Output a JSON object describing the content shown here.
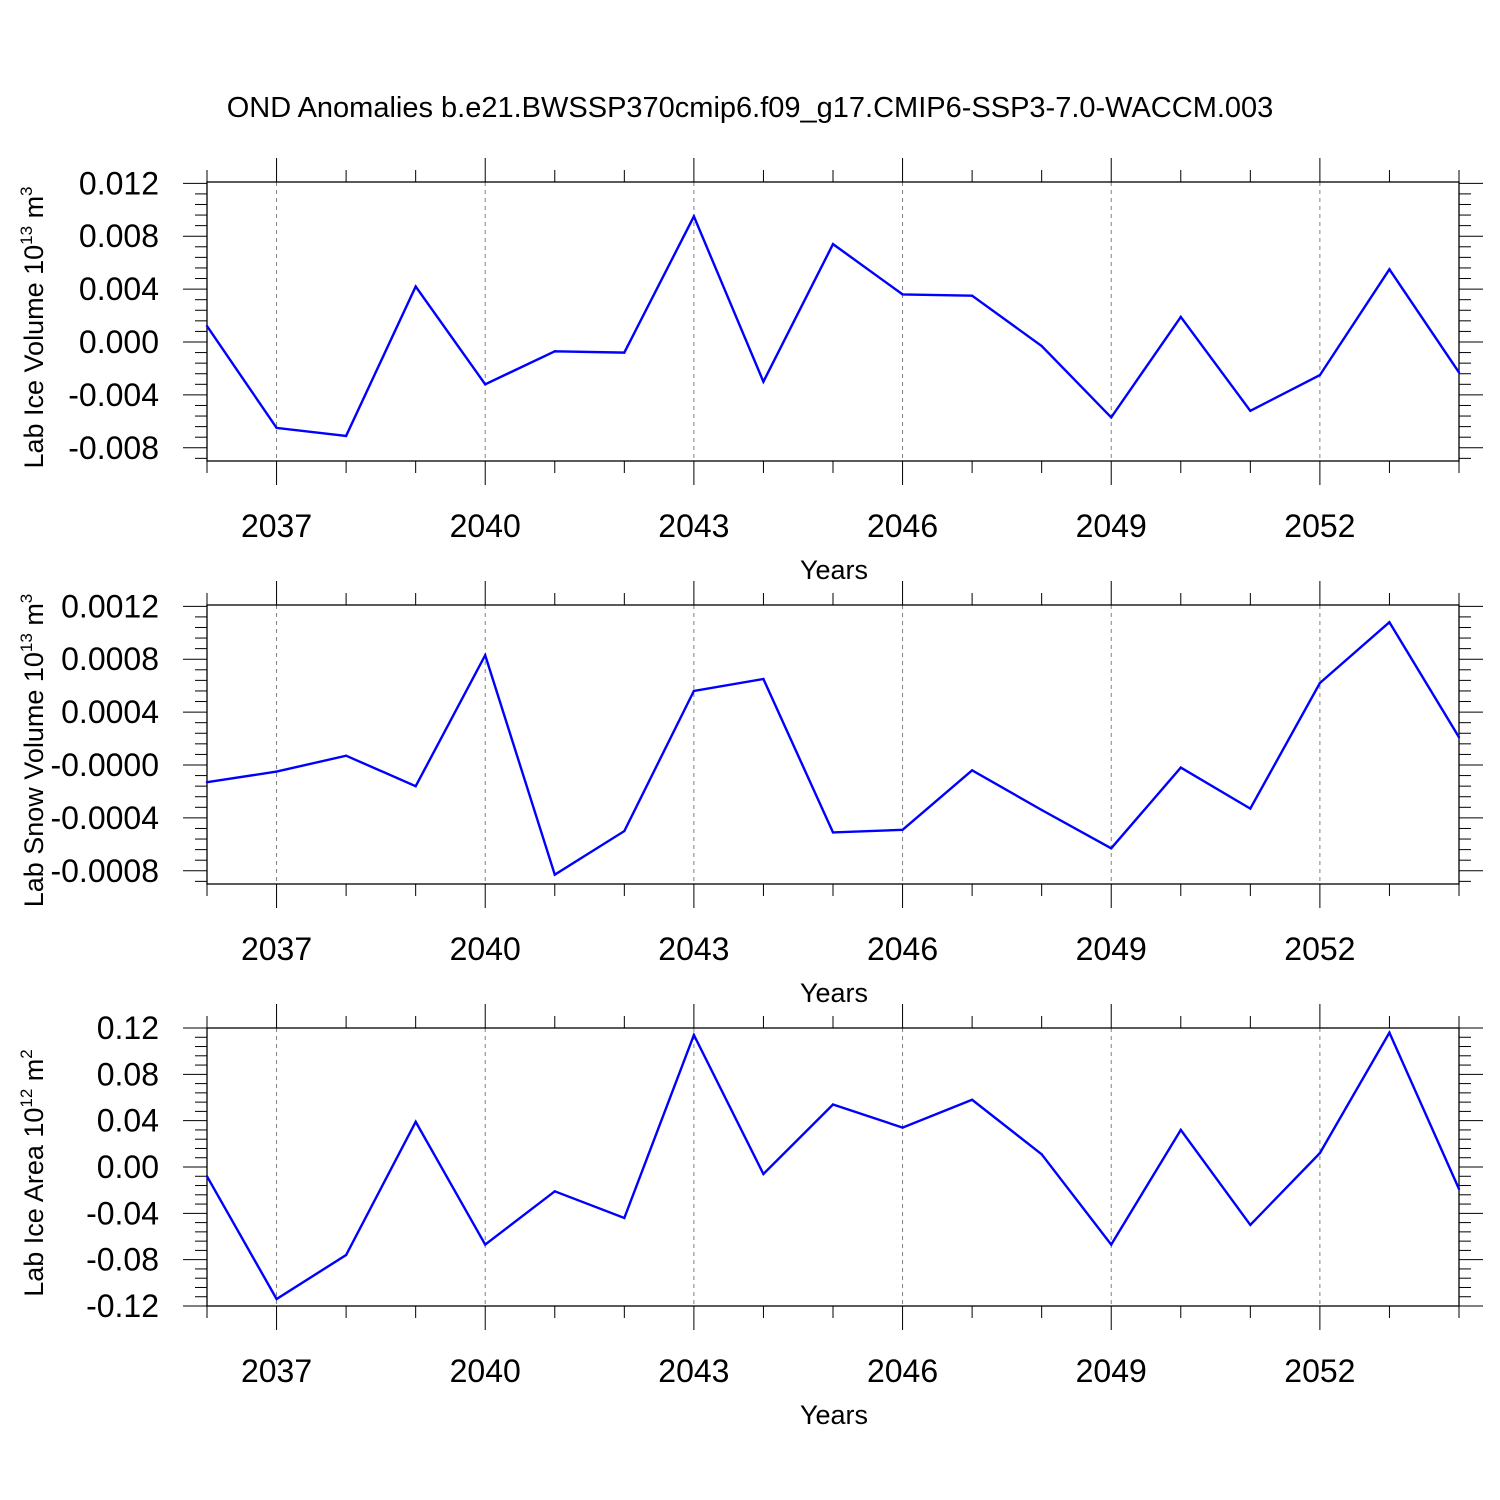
{
  "title": "OND Anomalies b.e21.BWSSP370cmip6.f09_g17.CMIP6-SSP3-7.0-WACCM.003",
  "colors": {
    "line": "#0000ff",
    "axis": "#000000",
    "grid": "#808080"
  },
  "chart_data": [
    {
      "type": "line",
      "ylabel": {
        "base": "Lab Ice Volume 10",
        "exp": "13",
        "unit": " m",
        "unit_exp": "3"
      },
      "xlabel": "Years",
      "xlim": [
        2036,
        2054
      ],
      "ylim": [
        -0.009,
        0.0121
      ],
      "ytick_values": [
        -0.008,
        -0.004,
        0.0,
        0.004,
        0.008,
        0.012
      ],
      "ytick_labels": [
        "-0.008",
        "-0.004",
        "0.000",
        "0.004",
        "0.008",
        "0.012"
      ],
      "xtick_values": [
        2037,
        2040,
        2043,
        2046,
        2049,
        2052
      ],
      "xtick_labels": [
        "2037",
        "2040",
        "2043",
        "2046",
        "2049",
        "2052"
      ],
      "grid": "vertical dashed at major x ticks",
      "x": [
        2036,
        2037,
        2038,
        2039,
        2040,
        2041,
        2042,
        2043,
        2044,
        2045,
        2046,
        2047,
        2048,
        2049,
        2050,
        2051,
        2052,
        2053,
        2054
      ],
      "y": [
        0.0012,
        -0.0065,
        -0.0071,
        0.0042,
        -0.0032,
        -0.0007,
        -0.0008,
        0.0095,
        -0.003,
        0.0074,
        0.0036,
        0.0035,
        -0.0003,
        -0.0057,
        0.0019,
        -0.0052,
        -0.0025,
        0.0055,
        -0.0023
      ]
    },
    {
      "type": "line",
      "ylabel": {
        "base": "Lab Snow Volume 10",
        "exp": "13",
        "unit": " m",
        "unit_exp": "3"
      },
      "xlabel": "Years",
      "xlim": [
        2036,
        2054
      ],
      "ylim": [
        -0.0009,
        0.00121
      ],
      "ytick_values": [
        -0.0008,
        -0.0004,
        0.0,
        0.0004,
        0.0008,
        0.0012
      ],
      "ytick_labels": [
        "-0.0008",
        "-0.0004",
        "-0.0000",
        "0.0004",
        "0.0008",
        "0.0012"
      ],
      "xtick_values": [
        2037,
        2040,
        2043,
        2046,
        2049,
        2052
      ],
      "xtick_labels": [
        "2037",
        "2040",
        "2043",
        "2046",
        "2049",
        "2052"
      ],
      "grid": "vertical dashed at major x ticks",
      "x": [
        2036,
        2037,
        2038,
        2039,
        2040,
        2041,
        2042,
        2043,
        2044,
        2045,
        2046,
        2047,
        2048,
        2049,
        2050,
        2051,
        2052,
        2053,
        2054
      ],
      "y": [
        -0.00013,
        -5e-05,
        7e-05,
        -0.00016,
        0.00083,
        -0.00083,
        -0.0005,
        0.00056,
        0.00065,
        -0.00051,
        -0.00049,
        -4e-05,
        -0.00034,
        -0.00063,
        -2e-05,
        -0.00033,
        0.00062,
        0.00108,
        0.00021
      ]
    },
    {
      "type": "line",
      "ylabel": {
        "base": "Lab Ice Area 10",
        "exp": "12",
        "unit": " m",
        "unit_exp": "2"
      },
      "xlabel": "Years",
      "xlim": [
        2036,
        2054
      ],
      "ylim": [
        -0.12,
        0.12
      ],
      "ytick_values": [
        -0.12,
        -0.08,
        -0.04,
        0.0,
        0.04,
        0.08,
        0.12
      ],
      "ytick_labels": [
        "-0.12",
        "-0.08",
        "-0.04",
        "0.00",
        "0.04",
        "0.08",
        "0.12"
      ],
      "xtick_values": [
        2037,
        2040,
        2043,
        2046,
        2049,
        2052
      ],
      "xtick_labels": [
        "2037",
        "2040",
        "2043",
        "2046",
        "2049",
        "2052"
      ],
      "grid": "vertical dashed at major x ticks",
      "x": [
        2036,
        2037,
        2038,
        2039,
        2040,
        2041,
        2042,
        2043,
        2044,
        2045,
        2046,
        2047,
        2048,
        2049,
        2050,
        2051,
        2052,
        2053,
        2054
      ],
      "y": [
        -0.008,
        -0.114,
        -0.076,
        0.039,
        -0.067,
        -0.021,
        -0.044,
        0.114,
        -0.006,
        0.054,
        0.034,
        0.058,
        0.011,
        -0.067,
        0.032,
        -0.05,
        0.012,
        0.116,
        -0.019
      ]
    }
  ]
}
